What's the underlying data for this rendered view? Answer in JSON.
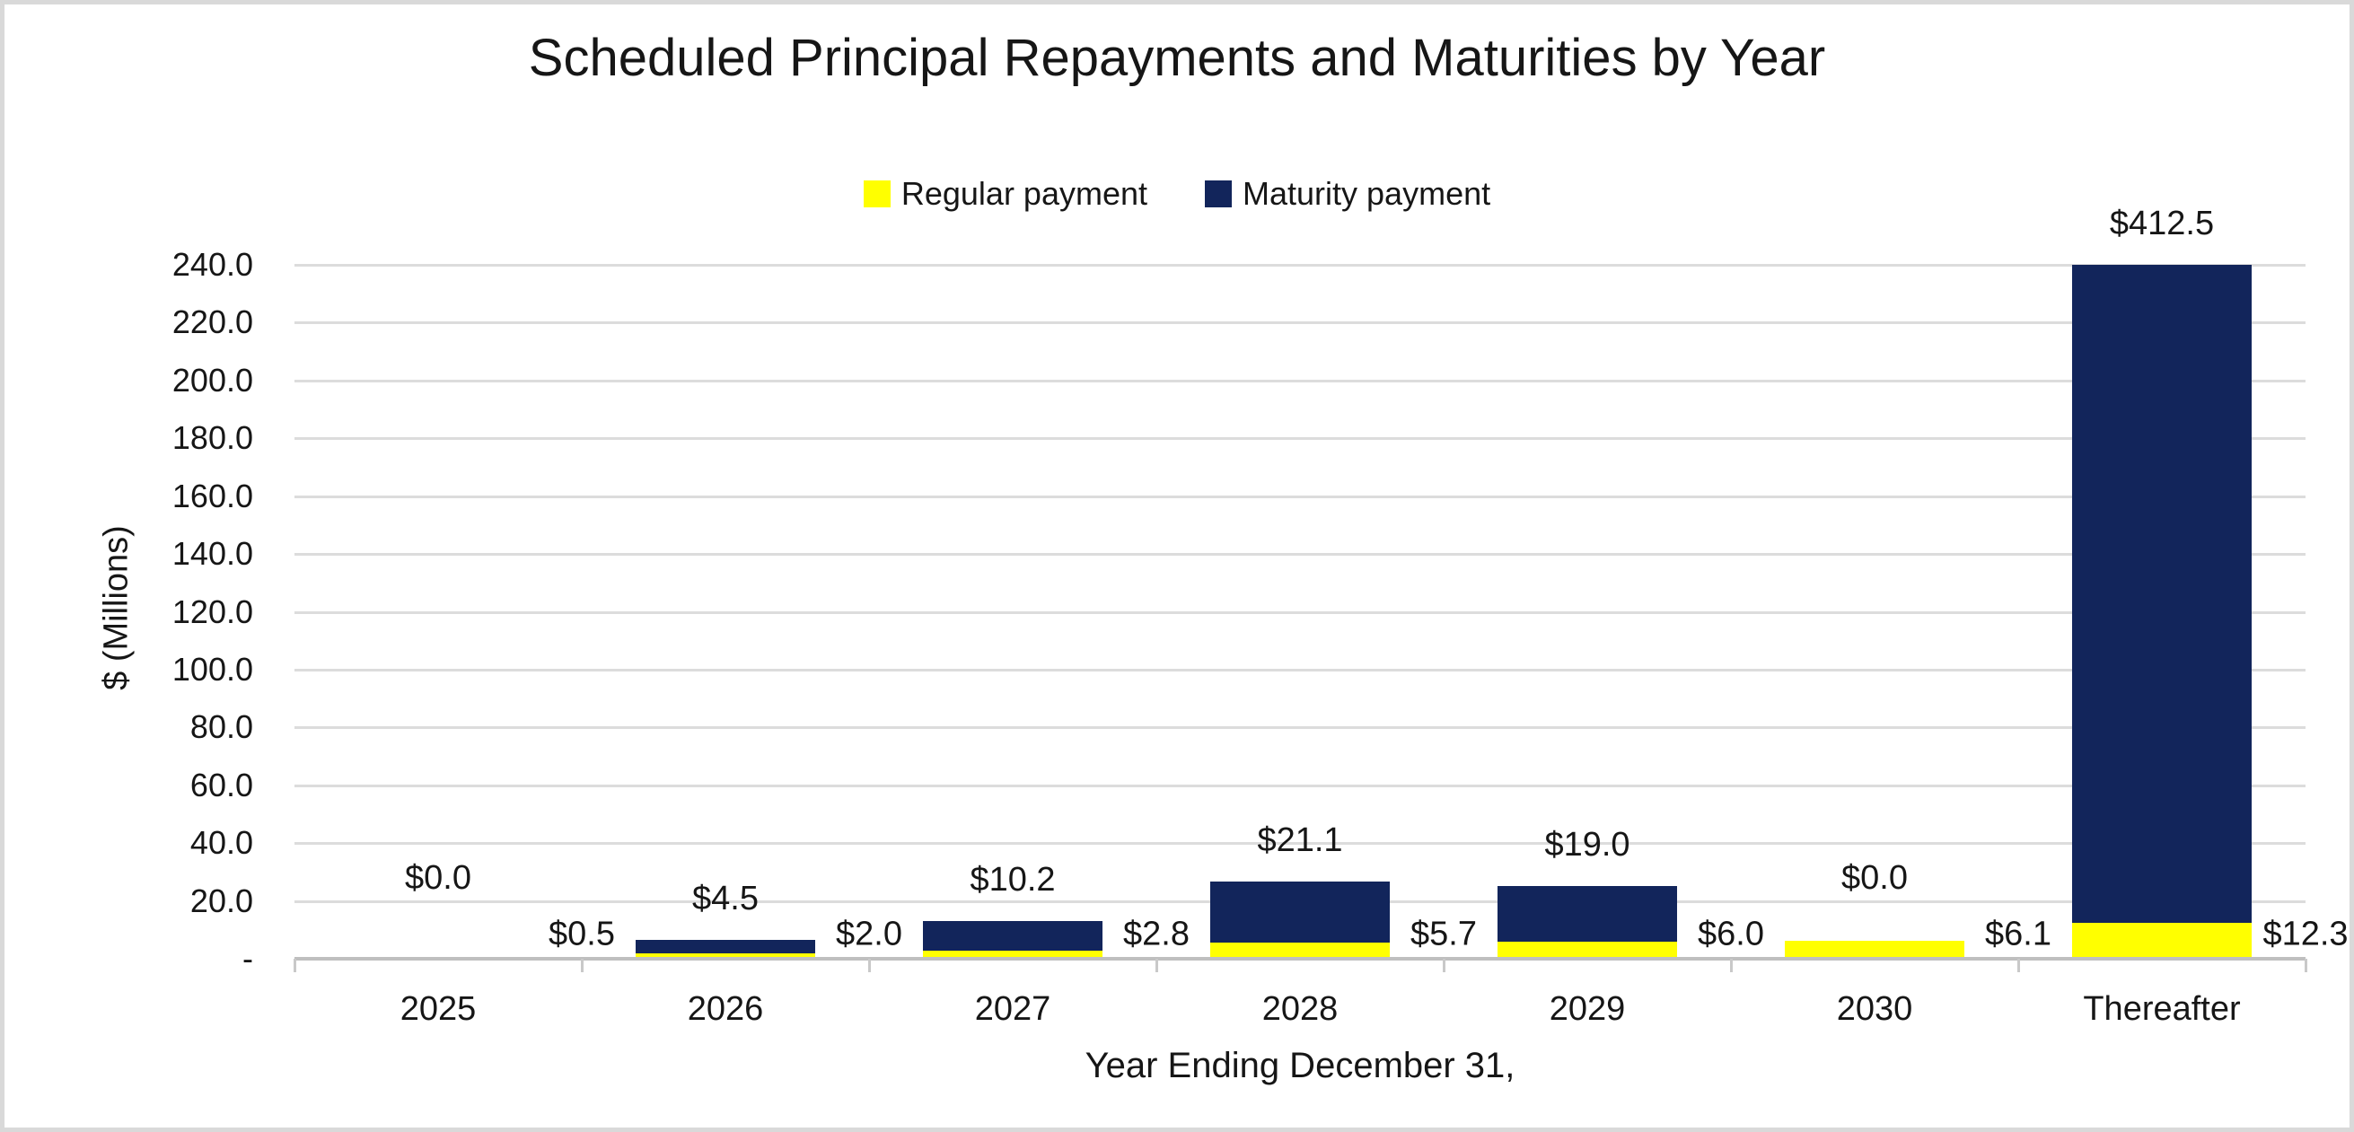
{
  "chart_data": {
    "type": "bar",
    "stacked": true,
    "title": "Scheduled Principal Repayments and Maturities by Year",
    "xlabel": "Year Ending December 31,",
    "ylabel": "$ (Millions)",
    "categories": [
      "2025",
      "2026",
      "2027",
      "2028",
      "2029",
      "2030",
      "Thereafter"
    ],
    "series": [
      {
        "name": "Regular payment",
        "color": "#FFFF00",
        "values": [
          0.5,
          2.0,
          2.8,
          5.7,
          6.0,
          6.1,
          12.3
        ],
        "labels": [
          "$0.5",
          "$2.0",
          "$2.8",
          "$5.7",
          "$6.0",
          "$6.1",
          "$12.3"
        ]
      },
      {
        "name": "Maturity payment",
        "color": "#12255B",
        "values": [
          0.0,
          4.5,
          10.2,
          21.1,
          19.0,
          0.0,
          412.5
        ],
        "labels": [
          "$0.0",
          "$4.5",
          "$10.2",
          "$21.1",
          "$19.0",
          "$0.0",
          "$412.5"
        ]
      }
    ],
    "ylim": [
      0,
      240
    ],
    "ytick_step": 20,
    "ytick_labels": [
      "240.0",
      "220.0",
      "200.0",
      "180.0",
      "160.0",
      "140.0",
      "120.0",
      "100.0",
      "80.0",
      "60.0",
      "40.0",
      "20.0",
      "-"
    ],
    "grid": true,
    "legend_position": "top",
    "colors": {
      "grid": "#DCDCDC",
      "axis": "#BFBFBF",
      "tick": "#C9C9C9",
      "text": "#161616",
      "border": "#D9D9D9"
    }
  }
}
